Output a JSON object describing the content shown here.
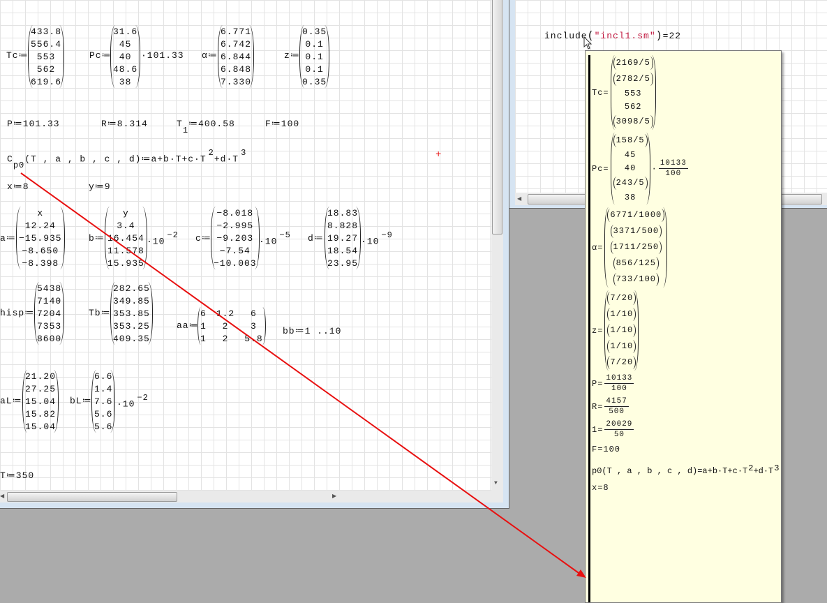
{
  "left": {
    "tc": {
      "name": "Tc",
      "op": "≔",
      "values": [
        "433.8",
        "556.4",
        "553",
        "562",
        "619.6"
      ]
    },
    "pc": {
      "name": "Pc",
      "op": "≔",
      "values": [
        "31.6",
        "45",
        "40",
        "48.6",
        "38"
      ],
      "factor": "·101.33"
    },
    "alpha": {
      "name": "α",
      "op": "≔",
      "values": [
        "6.771",
        "6.742",
        "6.844",
        "6.848",
        "7.330"
      ]
    },
    "z": {
      "name": "z",
      "op": "≔",
      "values": [
        "0.35",
        "0.1",
        "0.1",
        "0.1",
        "0.35"
      ]
    },
    "P": "P≔101.33",
    "R": "R≔8.314",
    "T1": {
      "base": "T",
      "sub": "1",
      "rest": "≔400.58"
    },
    "F": "F≔100",
    "cp0": {
      "base": "C",
      "sub": "p0",
      "mid": "(T , a , b , c , d)≔a+b·T+c·T",
      "exp1": "2",
      "mid2": "+d·T",
      "exp2": "3"
    },
    "x": "x≔8",
    "y": "y≔9",
    "a": {
      "name": "a",
      "op": "≔",
      "values": [
        "x",
        "12.24",
        "−15.935",
        "−8.650",
        "−8.398"
      ]
    },
    "b": {
      "name": "b",
      "op": "≔",
      "values": [
        "y",
        "3.4",
        "16.454",
        "11.578",
        "15.935"
      ],
      "factor": "·10",
      "exp": "−2"
    },
    "c": {
      "name": "c",
      "op": "≔",
      "values": [
        "−8.018",
        "−2.995",
        "−9.203",
        "−7.54",
        "−10.003"
      ],
      "factor": "·10",
      "exp": "−5"
    },
    "d": {
      "name": "d",
      "op": "≔",
      "values": [
        "18.83",
        "8.828",
        "19.27",
        "18.54",
        "23.95"
      ],
      "factor": "·10",
      "exp": "−9"
    },
    "hisp": {
      "name": "hisp",
      "op": "≔",
      "values": [
        "5438",
        "7140",
        "7204",
        "7353",
        "8600"
      ]
    },
    "tb": {
      "name": "Tb",
      "op": "≔",
      "values": [
        "282.65",
        "349.85",
        "353.85",
        "353.25",
        "409.35"
      ]
    },
    "aa": {
      "name": "aa",
      "op": "≔",
      "values": [
        [
          "6",
          "1.2",
          "6"
        ],
        [
          "1",
          "2",
          "3"
        ],
        [
          "1",
          "2",
          "5.8"
        ]
      ]
    },
    "bb": "bb≔1 ..10",
    "aL": {
      "name": "aL",
      "op": "≔",
      "values": [
        "21.20",
        "27.25",
        "15.04",
        "15.82",
        "15.04"
      ]
    },
    "bL": {
      "name": "bL",
      "op": "≔",
      "values": [
        "6.6",
        "1.4",
        "7.6",
        "5.6",
        "5.6"
      ],
      "factor": "·10",
      "exp": "−2"
    },
    "T": "T≔350"
  },
  "right": {
    "include": {
      "fn": "include",
      "arg": "\"incl1.sm\"",
      "result": "=22"
    }
  },
  "tooltip": {
    "tc": {
      "name": "Tc",
      "op": "=",
      "values": [
        "2169/5",
        "2782/5",
        "553",
        "562",
        "3098/5"
      ]
    },
    "pc": {
      "name": "Pc",
      "op": "=",
      "values": [
        "158/5",
        "45",
        "40",
        "243/5",
        "38"
      ],
      "factor_num": "10133",
      "factor_den": "100"
    },
    "alpha": {
      "name": "α",
      "op": "=",
      "values": [
        "6771/1000",
        "3371/500",
        "1711/250",
        "856/125",
        "733/100"
      ]
    },
    "z": {
      "name": "z",
      "op": "=",
      "values": [
        "7/20",
        "1/10",
        "1/10",
        "1/10",
        "7/20"
      ]
    },
    "P": {
      "name": "P",
      "op": "=",
      "num": "10133",
      "den": "100"
    },
    "R": {
      "name": "R",
      "op": "=",
      "num": "4157",
      "den": "500"
    },
    "one": {
      "name": "1",
      "op": "=",
      "num": "20029",
      "den": "50"
    },
    "F": "F=100",
    "p0": {
      "mid": "p0(T , a , b , c , d)=a+b·T+c·T",
      "exp1": "2",
      "mid2": "+d·T",
      "exp2": "3"
    },
    "x": "x=8"
  },
  "colors": {
    "arrow": "#e81010",
    "string": "#c0143c",
    "tooltip_bg": "#ffffe1",
    "workspace": "#ababab"
  }
}
